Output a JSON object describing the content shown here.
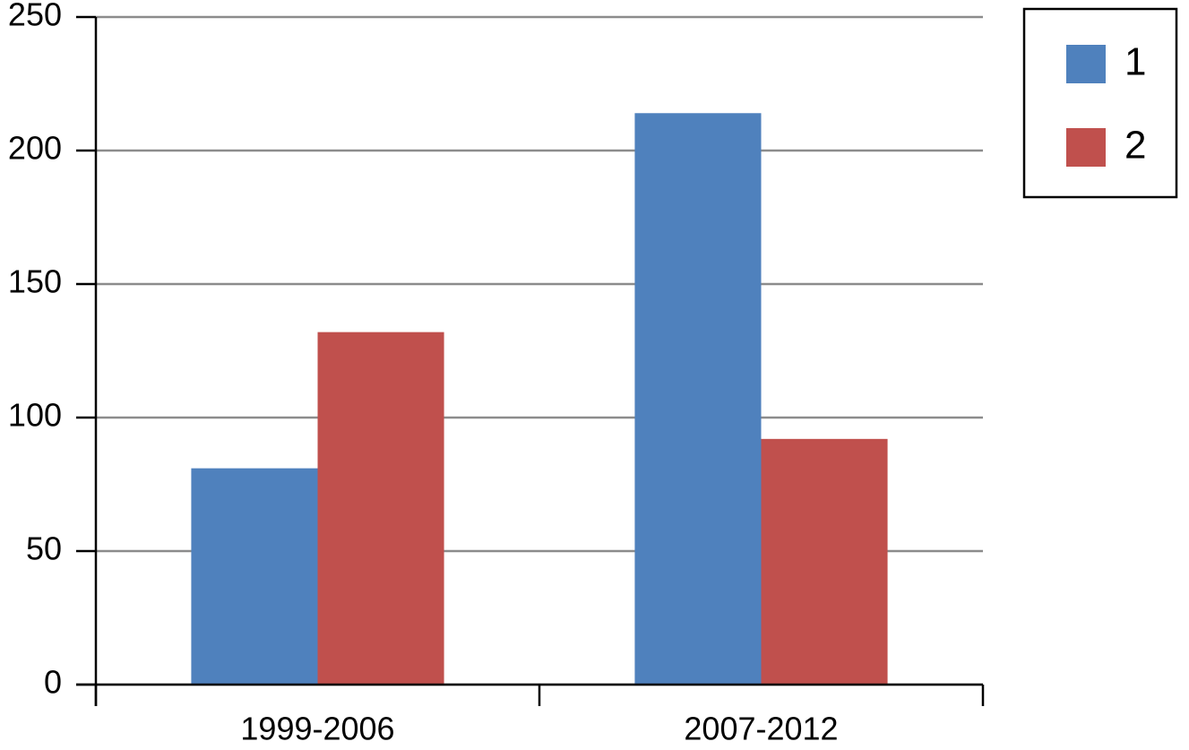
{
  "chart_data": {
    "type": "bar",
    "categories": [
      "1999-2006",
      "2007-2012"
    ],
    "series": [
      {
        "name": "1",
        "color": "#4f81bd",
        "values": [
          81,
          214
        ]
      },
      {
        "name": "2",
        "color": "#c0504d",
        "values": [
          132,
          92
        ]
      }
    ],
    "ylim": [
      0,
      250
    ],
    "yticks": [
      0,
      50,
      100,
      150,
      200,
      250
    ],
    "grid": true,
    "legend_position": "right"
  }
}
